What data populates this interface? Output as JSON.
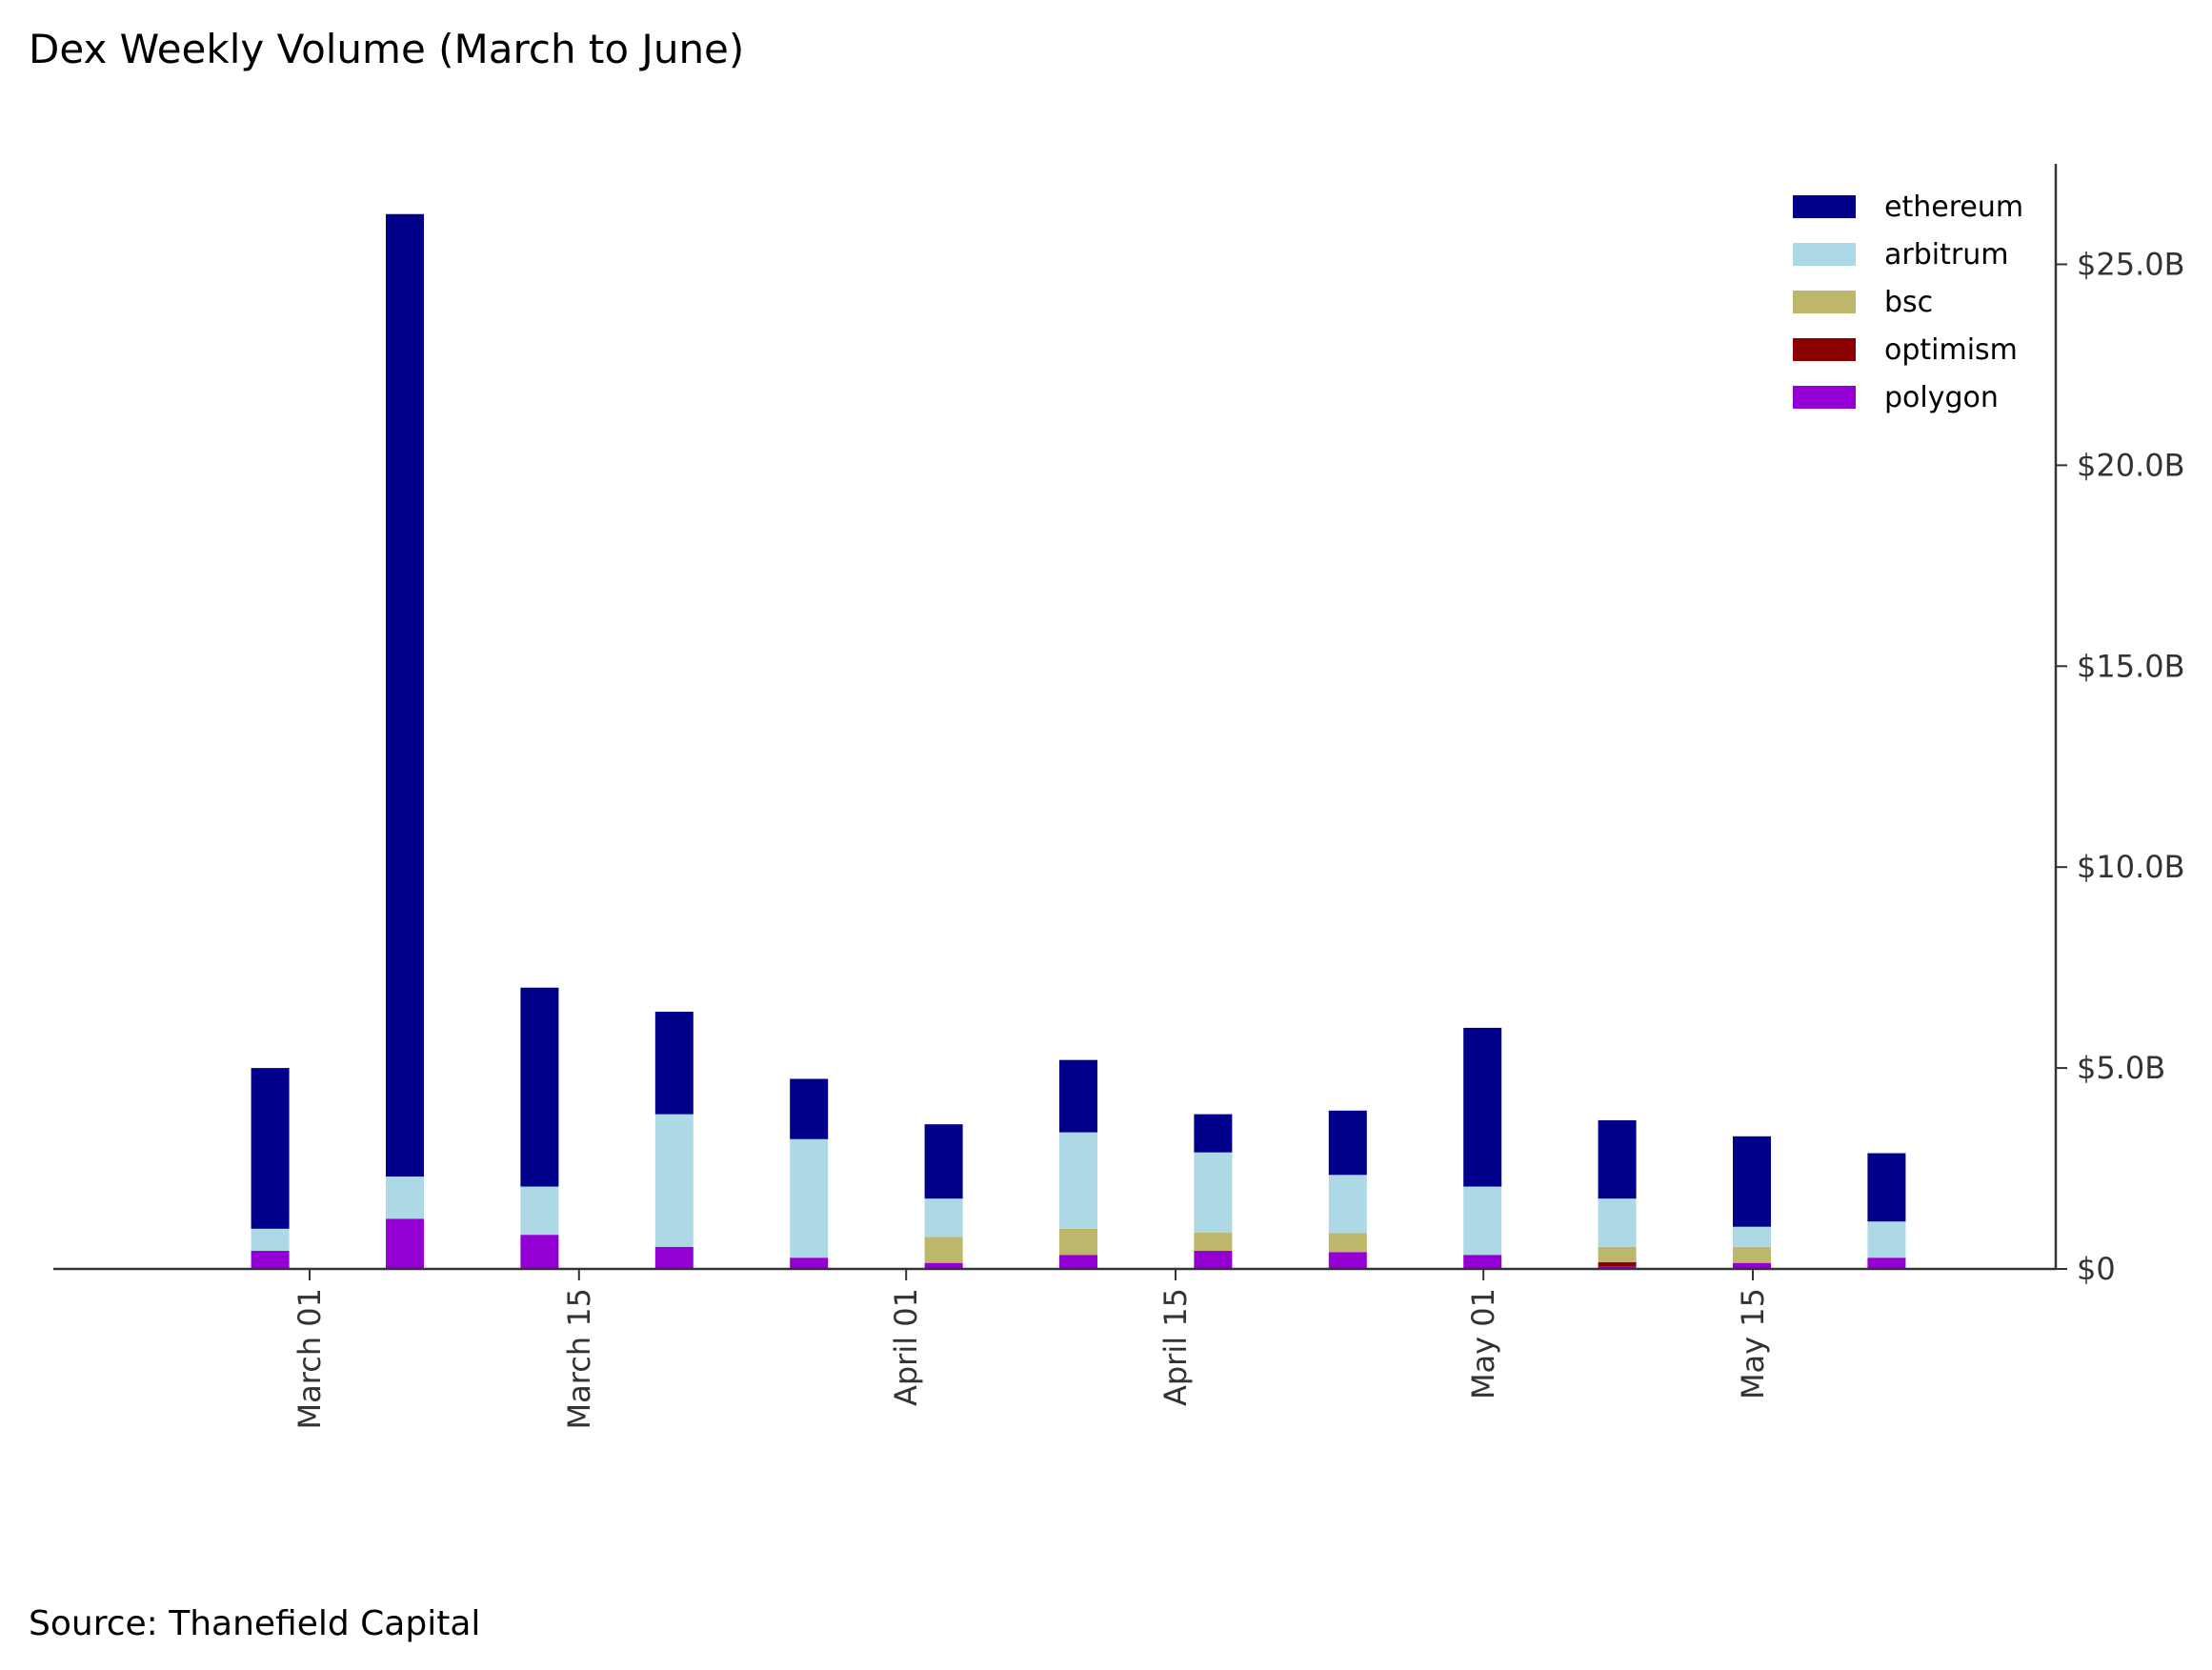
{
  "title": "Dex Weekly Volume (March to June)",
  "source": "Source: Thanefield Capital",
  "chart_data": {
    "type": "bar",
    "stacked": true,
    "title": "Dex Weekly Volume (March to June)",
    "xlabel": "",
    "ylabel": "",
    "y_axis_side": "right",
    "grid": false,
    "legend_position": "top-right",
    "ylim": [
      0,
      27.5
    ],
    "y_unit": "B",
    "x_tick_labels": [
      "March 01",
      "March 15",
      "April 01",
      "April 15",
      "May 01",
      "May 15"
    ],
    "y_tick_labels": [
      "$0",
      "$5.0B",
      "$10.0B",
      "$15.0B",
      "$20.0B",
      "$25.0B"
    ],
    "categories": [
      "2023-02-27",
      "2023-03-06",
      "2023-03-13",
      "2023-03-20",
      "2023-03-27",
      "2023-04-03",
      "2023-04-10",
      "2023-04-17",
      "2023-04-24",
      "2023-05-01",
      "2023-05-08",
      "2023-05-15",
      "2023-05-22"
    ],
    "series": [
      {
        "name": "polygon",
        "color": "#9400D3",
        "values": [
          0.45,
          1.25,
          0.85,
          0.55,
          0.28,
          0.15,
          0.35,
          0.45,
          0.42,
          0.35,
          0.07,
          0.15,
          0.28
        ]
      },
      {
        "name": "optimism",
        "color": "#8B0000",
        "values": [
          0.0,
          0.0,
          0.0,
          0.0,
          0.0,
          0.0,
          0.0,
          0.0,
          0.0,
          0.0,
          0.1,
          0.0,
          0.0
        ]
      },
      {
        "name": "bsc",
        "color": "#BDB76B",
        "values": [
          0.0,
          0.0,
          0.0,
          0.0,
          0.0,
          0.65,
          0.65,
          0.45,
          0.47,
          0.0,
          0.38,
          0.4,
          0.0
        ]
      },
      {
        "name": "arbitrum",
        "color": "#ADD8E6",
        "values": [
          0.55,
          1.05,
          1.2,
          3.3,
          2.95,
          0.95,
          2.4,
          2.0,
          1.45,
          1.7,
          1.2,
          0.5,
          0.9
        ]
      },
      {
        "name": "ethereum",
        "color": "#00008B",
        "values": [
          4.0,
          23.95,
          4.95,
          2.55,
          1.5,
          1.85,
          1.8,
          0.95,
          1.6,
          3.95,
          1.95,
          2.25,
          1.7
        ]
      }
    ],
    "legend_order": [
      "ethereum",
      "arbitrum",
      "bsc",
      "optimism",
      "polygon"
    ]
  }
}
